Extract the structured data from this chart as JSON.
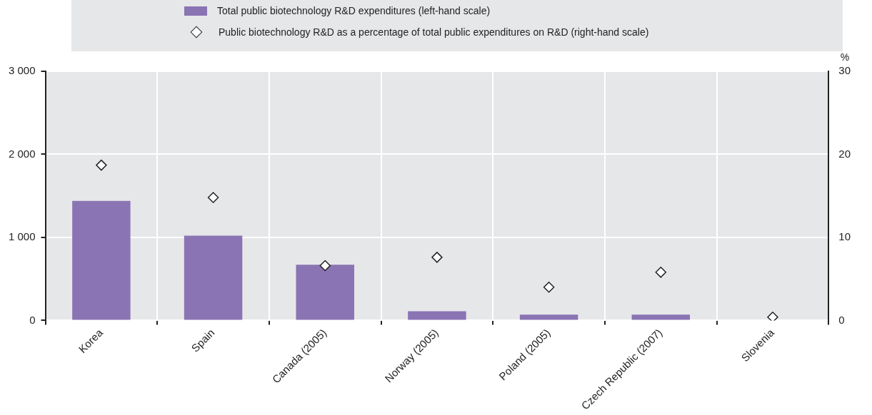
{
  "chart_data": {
    "type": "bar",
    "categories": [
      "Korea",
      "Spain",
      "Canada (2005)",
      "Norway (2005)",
      "Poland (2005)",
      "Czech Republic (2007)",
      "Slovenia"
    ],
    "series": [
      {
        "name": "Total public biotechnology R&D expenditures (left-hand scale)",
        "color": "#8a74b3",
        "values": [
          1440,
          1020,
          670,
          110,
          70,
          70,
          0
        ]
      },
      {
        "name": "Public biotechnology R&D as a percentage of total public expenditures on R&D (right-hand scale)",
        "type": "scatter",
        "axis": "y2",
        "color": "#ffffff",
        "marker": "diamond",
        "values": [
          18.7,
          14.8,
          6.6,
          7.6,
          4.0,
          5.8,
          0.4
        ]
      }
    ],
    "ylim": [
      0,
      3000
    ],
    "yticks": [
      0,
      {
        "value": 1000,
        "label": "1 000"
      },
      {
        "value": 2000,
        "label": "2 000"
      },
      {
        "value": 3000,
        "label": "3 000"
      }
    ],
    "y2lim": [
      0,
      30
    ],
    "y2ticks": [
      0,
      10,
      20,
      30
    ],
    "y2label": "%",
    "grid": true,
    "legend": "top"
  }
}
